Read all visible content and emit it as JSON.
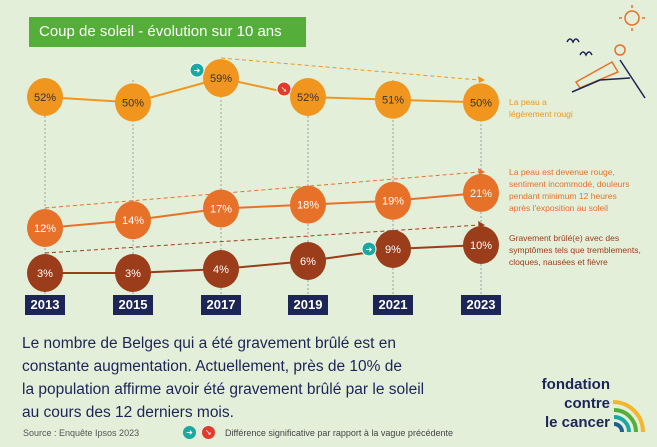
{
  "chart_data": {
    "type": "line",
    "title": "Coup de soleil - évolution sur 10 ans",
    "categories": [
      "2013",
      "2015",
      "2017",
      "2019",
      "2021",
      "2023"
    ],
    "series": [
      {
        "name": "La peau a légèrement rougi",
        "values": [
          52,
          50,
          59,
          52,
          51,
          50
        ],
        "labels": [
          "52%",
          "50%",
          "59%",
          "52%",
          "51%",
          "50%"
        ],
        "color": "#f0961e",
        "significant": {
          "2017": "up",
          "2019": "down"
        }
      },
      {
        "name": "La peau est devenue rouge, sentiment incommodé, douleurs pendant minimum 12 heures après l'exposition au soleil",
        "values": [
          12,
          14,
          17,
          18,
          19,
          21
        ],
        "labels": [
          "12%",
          "14%",
          "17%",
          "18%",
          "19%",
          "21%"
        ],
        "color": "#e8712a",
        "significant": {}
      },
      {
        "name": "Gravement brûlé(e) avec des symptômes tels que tremblements, cloques, nausées et fièvre",
        "values": [
          3,
          3,
          4,
          6,
          9,
          10
        ],
        "labels": [
          "3%",
          "3%",
          "4%",
          "6%",
          "9%",
          "10%"
        ],
        "color": "#9b3d1a",
        "significant": {
          "2021": "up"
        }
      }
    ]
  },
  "legend": {
    "s1": [
      "La peau a",
      "légèrement rougi"
    ],
    "s2": [
      "La peau est devenue rouge,",
      "sentiment incommodé, douleurs",
      "pendant minimum 12 heures",
      "après l'exposition au soleil"
    ],
    "s3": [
      "Gravement brûlé(e) avec des",
      "symptômes tels que tremblements,",
      "cloques, nausées et fièvre"
    ]
  },
  "body_lines": [
    "Le nombre de Belges qui a été gravement brûlé est en",
    "constante augmentation. Actuellement, près de 10% de",
    "la population affirme avoir été gravement brûlé par le soleil",
    "au cours des 12 derniers mois."
  ],
  "source": "Source :  Enquête Ipsos 2023",
  "note": "Différence significative par rapport à la vague précédente",
  "logo": [
    "fondation",
    "contre",
    "le cancer"
  ],
  "colors": {
    "bg": "#e3efd9",
    "header": "#55ae3a",
    "navy": "#1c2556",
    "up": "#1aa9a0",
    "down": "#e23b2e"
  }
}
